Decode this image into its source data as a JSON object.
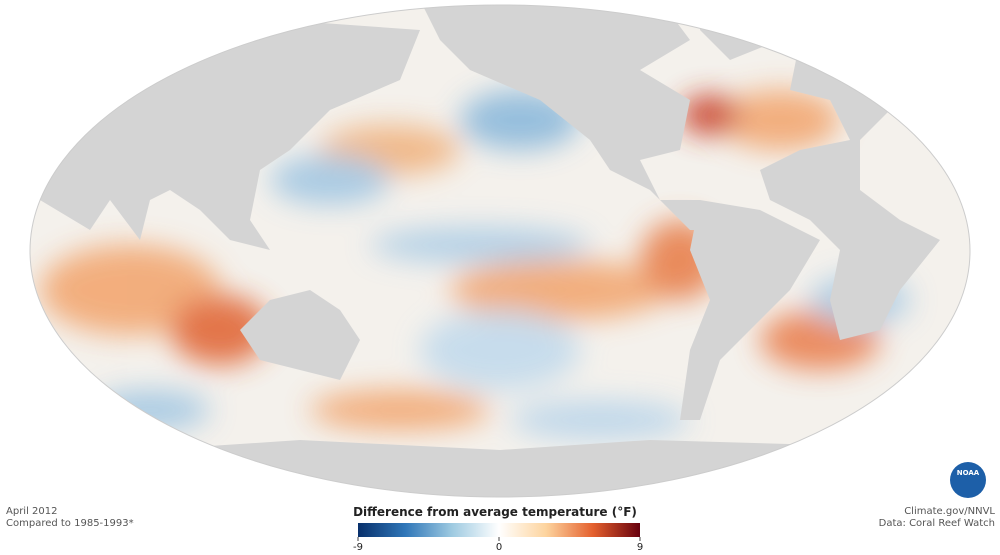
{
  "header": {
    "date": "April 2012",
    "baseline": "Compared to 1985-1993*"
  },
  "legend": {
    "title": "Difference from average temperature (°F)",
    "lim": [
      -9,
      9
    ],
    "ticks": [
      -9,
      0,
      9
    ],
    "colors": [
      "#08306b",
      "#2f76b8",
      "#9ecae1",
      "#ffffff",
      "#fdd49e",
      "#e4602e",
      "#67000d"
    ]
  },
  "credits": {
    "site": "Climate.gov/NNVL",
    "source": "Data: Coral Reef Watch"
  },
  "logo": {
    "text": "NOAA"
  }
}
